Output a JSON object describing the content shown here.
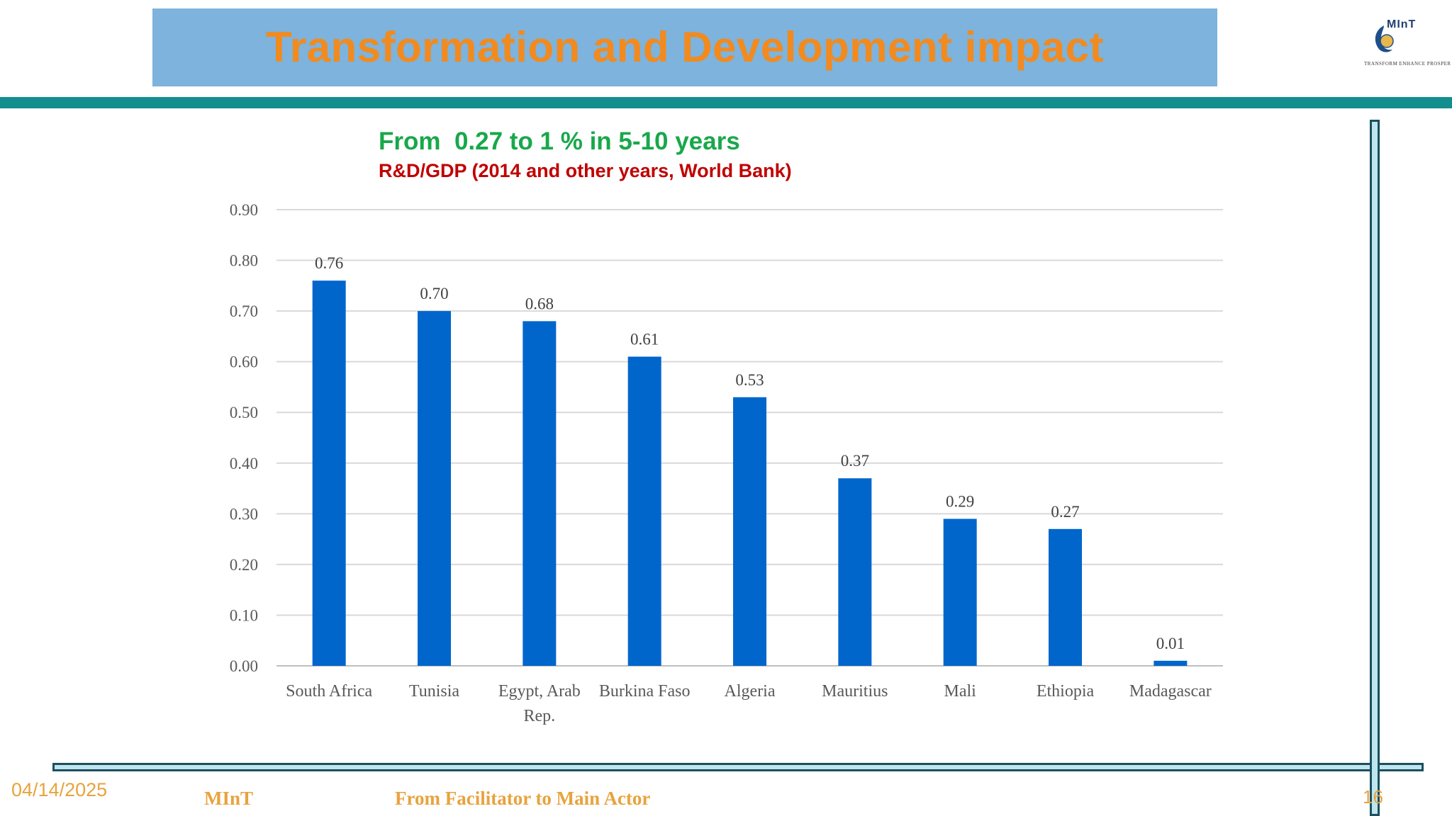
{
  "slide": {
    "title": "Transformation and Development impact",
    "logo_text": "MInT",
    "logo_subtext": "TRANSFORM ENHANCE PROSPER"
  },
  "footer": {
    "date": "04/14/2025",
    "org": "MInT",
    "tagline": "From Facilitator to Main Actor",
    "page": "16"
  },
  "colors": {
    "bar": "#0066cc",
    "title": "#f28a1e",
    "title_bg": "#7db3dc",
    "band": "#138e8e",
    "chart_title": "#18a84a",
    "chart_subtitle": "#c00000"
  },
  "chart_data": {
    "type": "bar",
    "title": "From  0.27 to 1 % in 5-10 years",
    "subtitle": "R&D/GDP (2014 and other years, World Bank)",
    "categories": [
      "South Africa",
      "Tunisia",
      "Egypt, Arab Rep.",
      "Burkina Faso",
      "Algeria",
      "Mauritius",
      "Mali",
      "Ethiopia",
      "Madagascar"
    ],
    "category_lines": [
      [
        "South Africa"
      ],
      [
        "Tunisia"
      ],
      [
        "Egypt, Arab",
        "Rep."
      ],
      [
        "Burkina Faso"
      ],
      [
        "Algeria"
      ],
      [
        "Mauritius"
      ],
      [
        "Mali"
      ],
      [
        "Ethiopia"
      ],
      [
        "Madagascar"
      ]
    ],
    "values": [
      0.76,
      0.7,
      0.68,
      0.61,
      0.53,
      0.37,
      0.29,
      0.27,
      0.01
    ],
    "value_labels": [
      "0.76",
      "0.70",
      "0.68",
      "0.61",
      "0.53",
      "0.37",
      "0.29",
      "0.27",
      "0.01"
    ],
    "ylim": [
      0,
      0.9
    ],
    "yticks": [
      "0.00",
      "0.10",
      "0.20",
      "0.30",
      "0.40",
      "0.50",
      "0.60",
      "0.70",
      "0.80",
      "0.90"
    ],
    "grid": true,
    "xlabel": "",
    "ylabel": ""
  }
}
